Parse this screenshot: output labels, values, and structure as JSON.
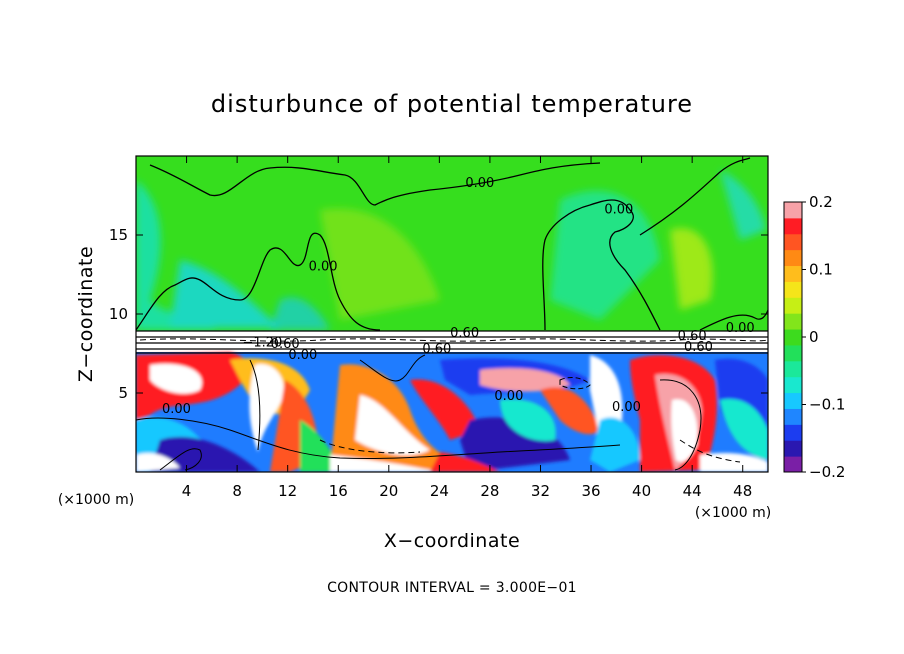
{
  "chart_data": {
    "type": "heatmap",
    "title": "disturbunce of potential temperature",
    "xlabel": "X−coordinate",
    "ylabel": "Z−coordinate",
    "x_unit_left": "(×1000 m)",
    "x_unit_right": "(×1000 m)",
    "footer": "CONTOUR INTERVAL = 3.000E−01",
    "xlim": [
      0,
      50
    ],
    "ylim": [
      0,
      20
    ],
    "x_ticks": [
      4,
      8,
      12,
      16,
      20,
      24,
      28,
      32,
      36,
      40,
      44,
      48
    ],
    "x_tick_labels": [
      "4",
      "8",
      "12",
      "16",
      "20",
      "24",
      "28",
      "32",
      "36",
      "40",
      "44",
      "48"
    ],
    "y_ticks": [
      5,
      10,
      15
    ],
    "y_tick_labels": [
      "5",
      "10",
      "15"
    ],
    "colorbar": {
      "range": [
        -0.2,
        0.2
      ],
      "tick_values": [
        0.2,
        0.1,
        0,
        -0.1,
        -0.2
      ],
      "tick_labels": [
        "0.2",
        "0.1",
        "0",
        "−0.1",
        "−0.2"
      ],
      "colors": [
        "#7a1fa6",
        "#2a18b0",
        "#1c3df0",
        "#1f86ff",
        "#17c8ff",
        "#19e8cf",
        "#1be89a",
        "#22e05a",
        "#3ddb1e",
        "#82e51b",
        "#c6ef15",
        "#f5e51a",
        "#ffbd1c",
        "#ff8a14",
        "#ff5522",
        "#ff1c24",
        "#f7a2a8"
      ]
    },
    "contour_labels": [
      {
        "text": "0.00",
        "x": 27.2,
        "y": 18.3
      },
      {
        "text": "0.00",
        "x": 14.8,
        "y": 13.0
      },
      {
        "text": "0.00",
        "x": 38.2,
        "y": 16.6
      },
      {
        "text": "0.60",
        "x": 26.0,
        "y": 8.8
      },
      {
        "text": "−1.20",
        "x": 10.0,
        "y": 8.2
      },
      {
        "text": "0.60",
        "x": 11.8,
        "y": 8.1
      },
      {
        "text": "0.00",
        "x": 13.2,
        "y": 7.4
      },
      {
        "text": "0.60",
        "x": 23.8,
        "y": 7.8
      },
      {
        "text": "0.00",
        "x": 29.5,
        "y": 4.8
      },
      {
        "text": "0.00",
        "x": 3.2,
        "y": 4.0
      },
      {
        "text": "0.00",
        "x": 38.8,
        "y": 4.1
      },
      {
        "text": "0.60",
        "x": 44.0,
        "y": 8.6
      },
      {
        "text": "0.60",
        "x": 44.5,
        "y": 7.9
      },
      {
        "text": "0.00",
        "x": 47.8,
        "y": 9.1
      }
    ]
  }
}
